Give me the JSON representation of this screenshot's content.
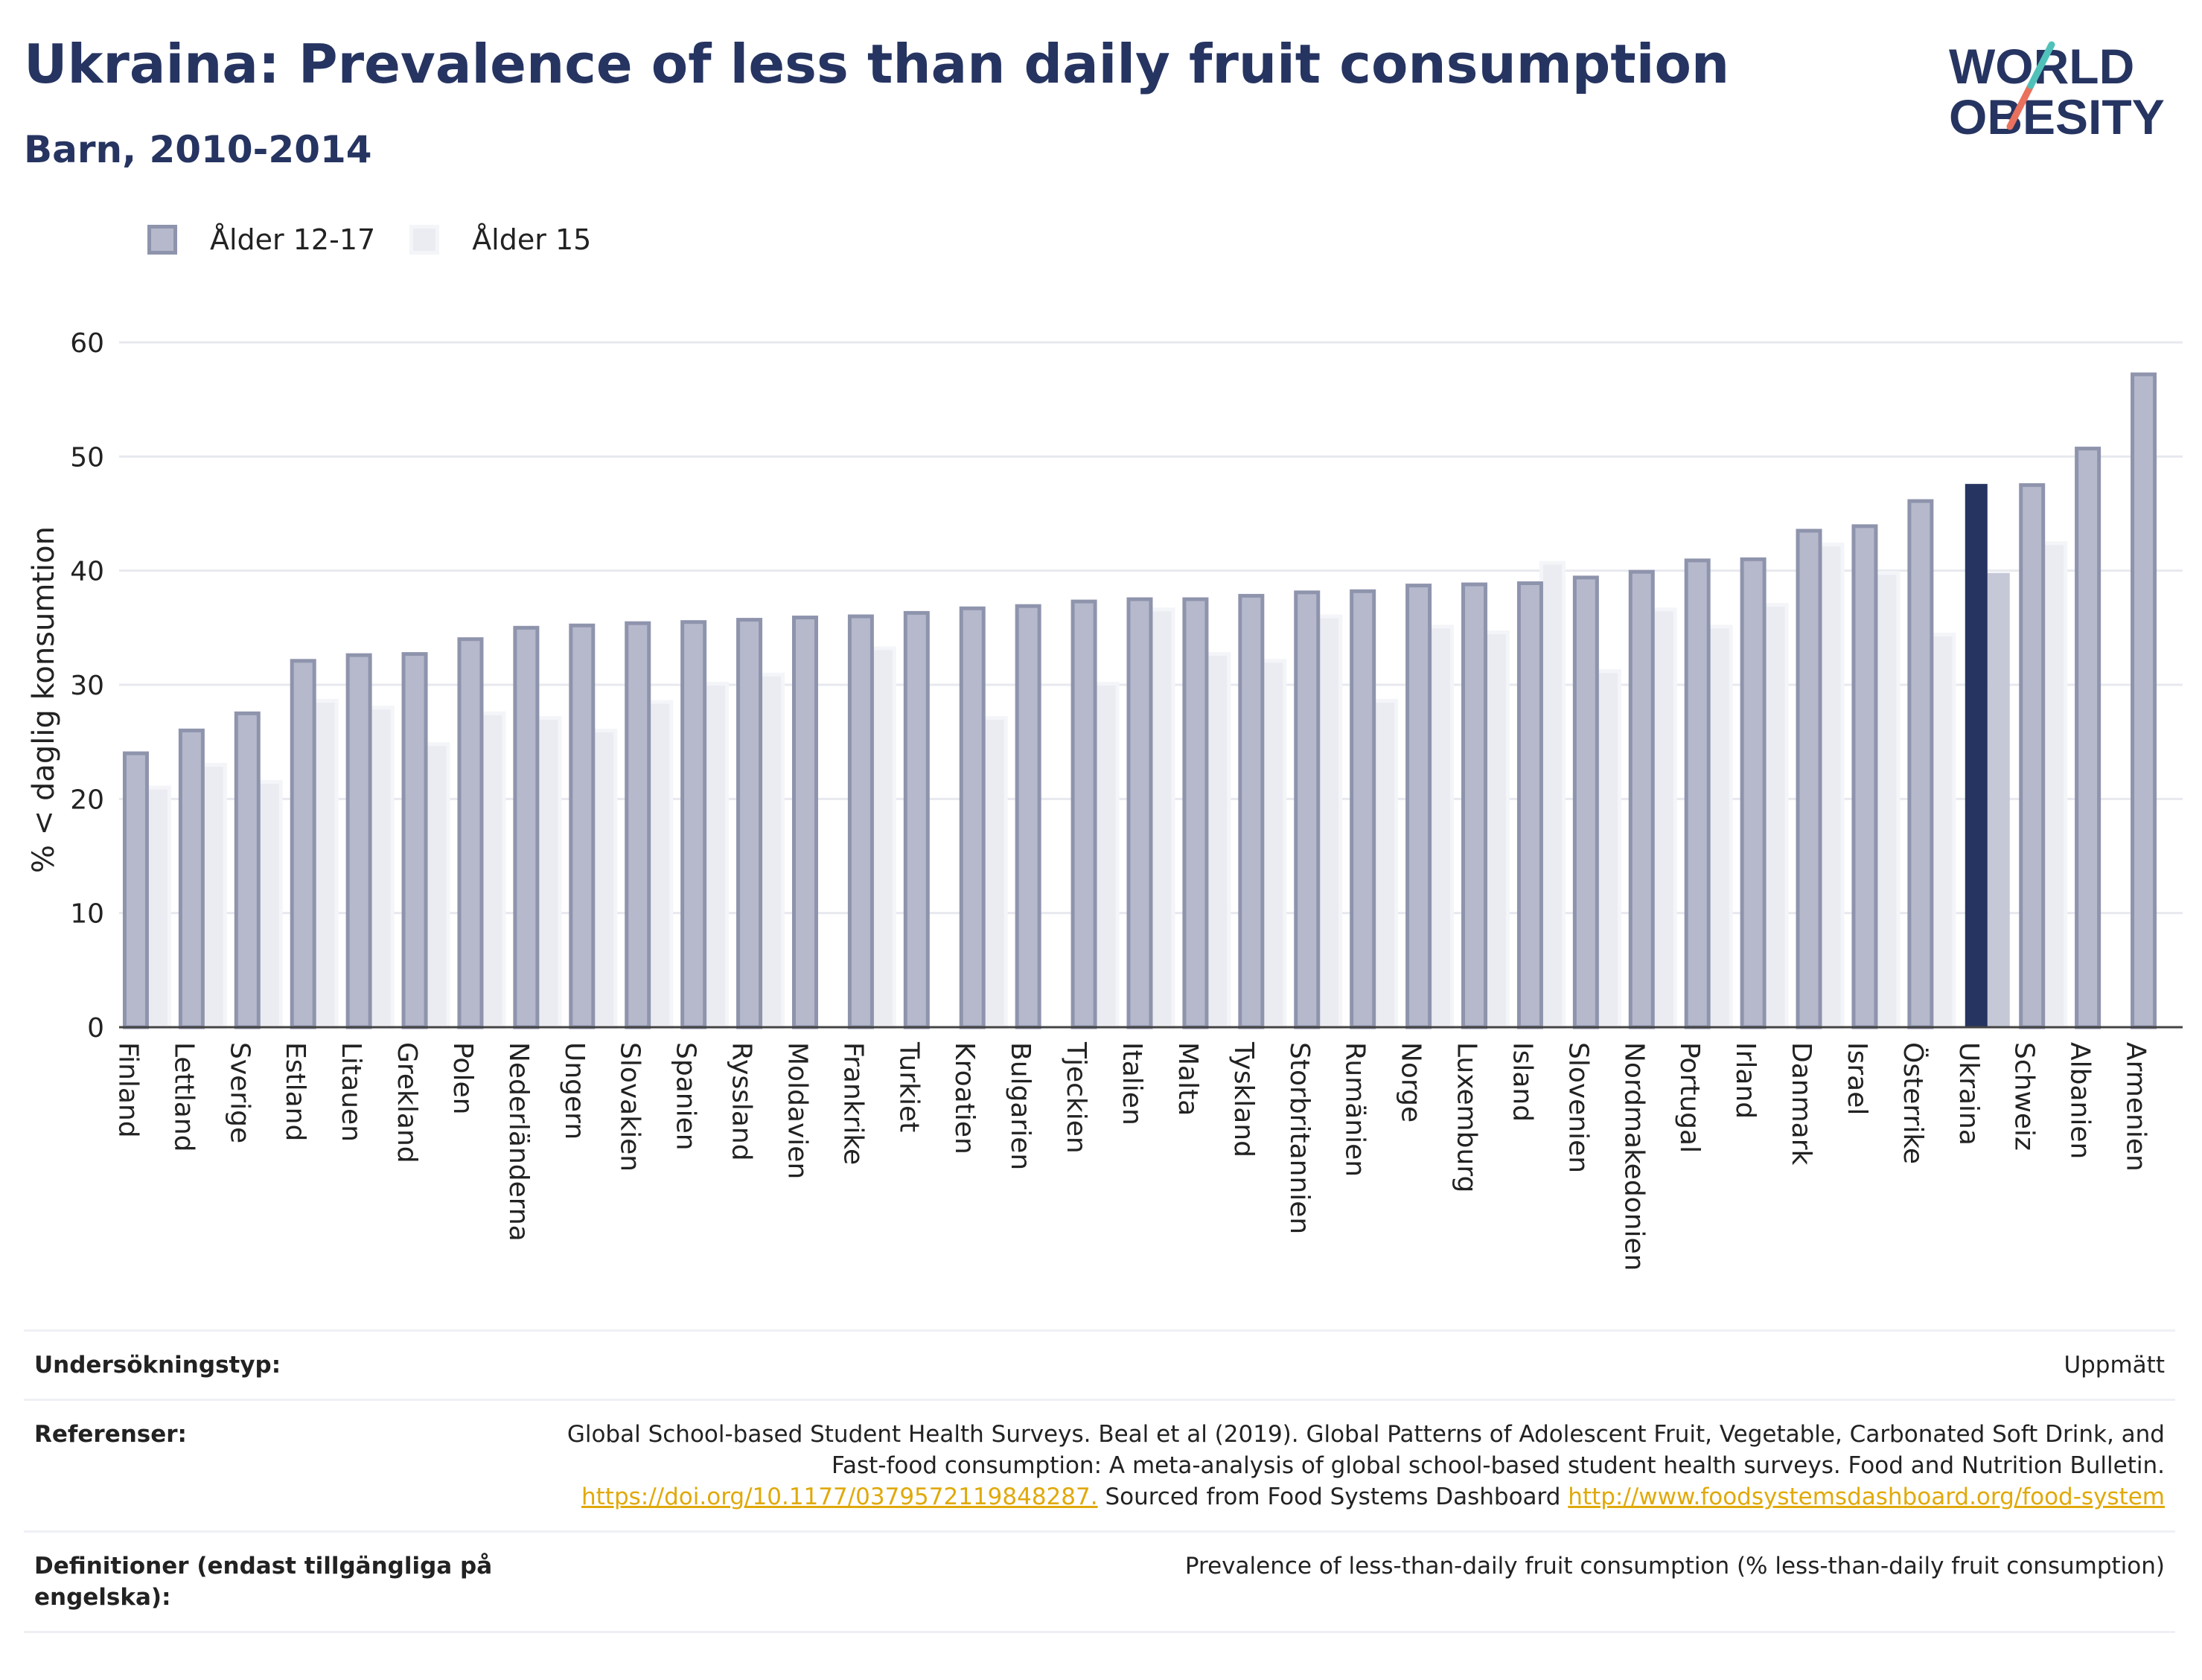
{
  "header": {
    "title": "Ukraina: Prevalence of less than daily fruit consumption",
    "subtitle": "Barn, 2010-2014",
    "logo_line1": "WORLD",
    "logo_line2": "OBESITY"
  },
  "legend": {
    "series_a": "Ålder 12-17",
    "series_b": "Ålder 15"
  },
  "colors": {
    "series_a_fill": "#b6b9cc",
    "series_a_stroke": "#8f94ad",
    "series_b_fill": "#ebecf2",
    "highlight_a": "#263461",
    "highlight_b": "#c5c8d6",
    "title": "#263461",
    "grid": "#e7e9ef",
    "logo_teal": "#4fc1b9",
    "logo_coral": "#e9715d"
  },
  "chart_data": {
    "type": "bar",
    "ylabel": "% < daglig konsumtion",
    "ylim": [
      0,
      60
    ],
    "yticks": [
      0,
      10,
      20,
      30,
      40,
      50,
      60
    ],
    "highlight": "Ukraina",
    "categories": [
      "Finland",
      "Lettland",
      "Sverige",
      "Estland",
      "Litauen",
      "Grekland",
      "Polen",
      "Nederländerna",
      "Ungern",
      "Slovakien",
      "Spanien",
      "Ryssland",
      "Moldavien",
      "Frankrike",
      "Turkiet",
      "Kroatien",
      "Bulgarien",
      "Tjeckien",
      "Italien",
      "Malta",
      "Tyskland",
      "Storbritannien",
      "Rumänien",
      "Norge",
      "Luxemburg",
      "Island",
      "Slovenien",
      "Nordmakedonien",
      "Portugal",
      "Irland",
      "Danmark",
      "Israel",
      "Österrike",
      "Ukraina",
      "Schweiz",
      "Albanien",
      "Armenien"
    ],
    "series": [
      {
        "name": "Ålder 12-17",
        "values": [
          24.0,
          26.0,
          27.5,
          32.1,
          32.6,
          32.7,
          34.0,
          35.0,
          35.2,
          35.4,
          35.5,
          35.7,
          35.9,
          36.0,
          36.3,
          36.7,
          36.9,
          37.3,
          37.5,
          37.5,
          37.8,
          38.1,
          38.2,
          38.7,
          38.8,
          38.9,
          39.4,
          39.9,
          40.9,
          41.0,
          43.5,
          43.9,
          46.1,
          47.6,
          47.5,
          50.7,
          57.2
        ]
      },
      {
        "name": "Ålder 15",
        "values": [
          21.0,
          23.0,
          21.5,
          28.6,
          28.0,
          24.8,
          27.5,
          27.1,
          26.0,
          28.5,
          30.1,
          30.9,
          null,
          33.2,
          null,
          27.1,
          null,
          30.1,
          36.6,
          32.7,
          32.1,
          36.0,
          28.6,
          35.1,
          34.6,
          40.7,
          31.2,
          36.6,
          35.1,
          37.0,
          42.3,
          39.8,
          34.4,
          39.8,
          42.4,
          null,
          null
        ]
      }
    ]
  },
  "table": {
    "rows": [
      {
        "label": "Undersökningstyp:",
        "value": "Uppmätt"
      },
      {
        "label": "Referenser:",
        "value_text": "Global School-based Student Health Surveys. Beal et al (2019). Global Patterns of Adolescent Fruit, Vegetable, Carbonated Soft Drink, and Fast-food consumption: A meta-analysis of global school-based student health surveys. Food and Nutrition Bulletin.",
        "link1": "https://doi.org/10.1177/0379572119848287.",
        "mid_text": "Sourced from Food Systems Dashboard",
        "link2": "http://www.foodsystemsdashboard.org/food-system"
      },
      {
        "label": "Definitioner (endast tillgängliga på engelska):",
        "value": "Prevalence of less-than-daily fruit consumption (% less-than-daily fruit consumption)"
      }
    ]
  }
}
